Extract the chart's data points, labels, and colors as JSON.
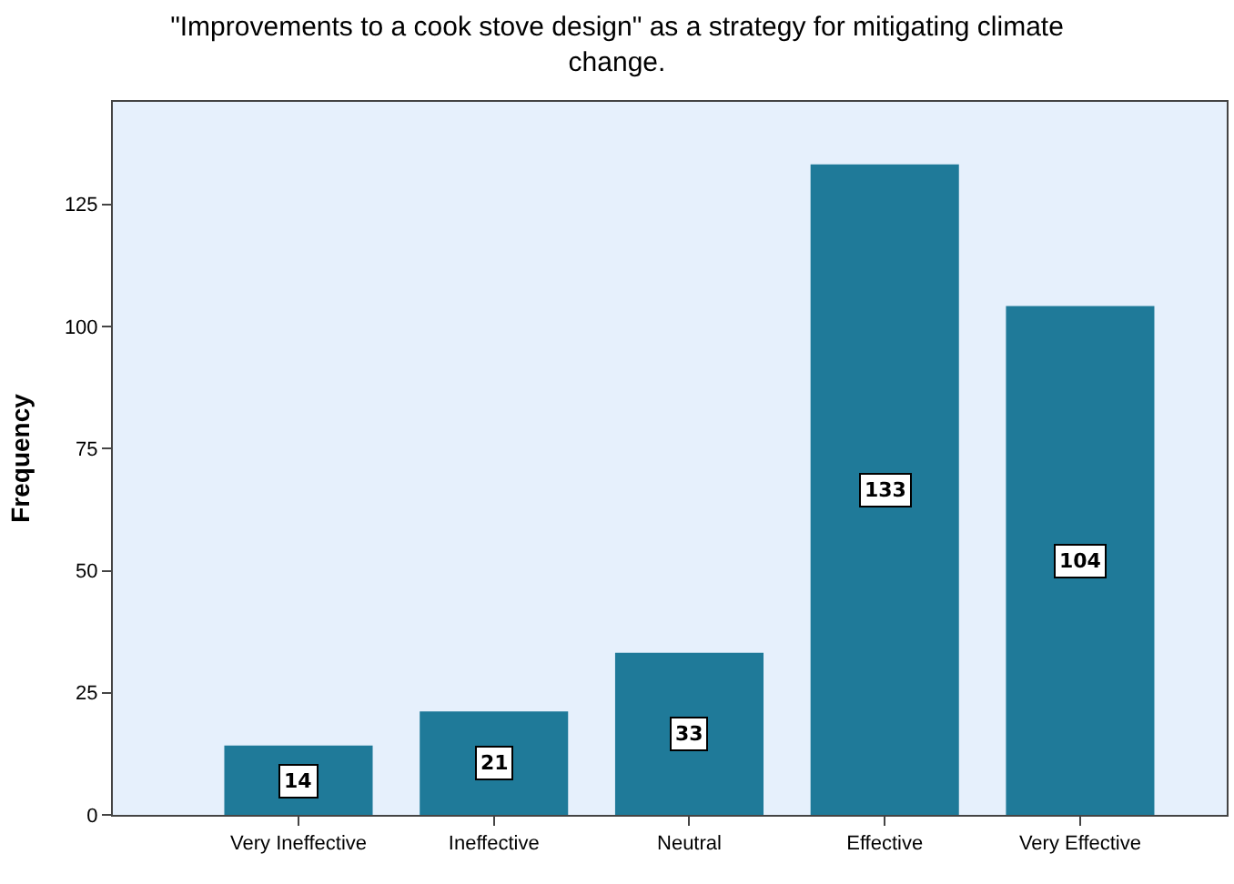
{
  "chart_data": {
    "type": "bar",
    "title": "\"Improvements to a cook stove design\" as a strategy for mitigating climate change.",
    "ylabel": "Frequency",
    "categories": [
      "Very Ineffective",
      "Ineffective",
      "Neutral",
      "Effective",
      "Very Effective"
    ],
    "values": [
      14,
      21,
      33,
      133,
      104
    ],
    "color": "#1f7a99",
    "ylim": [
      0,
      146
    ],
    "yticks": [
      0,
      25,
      50,
      75,
      100,
      125
    ],
    "data_labels": true,
    "grid": false
  }
}
